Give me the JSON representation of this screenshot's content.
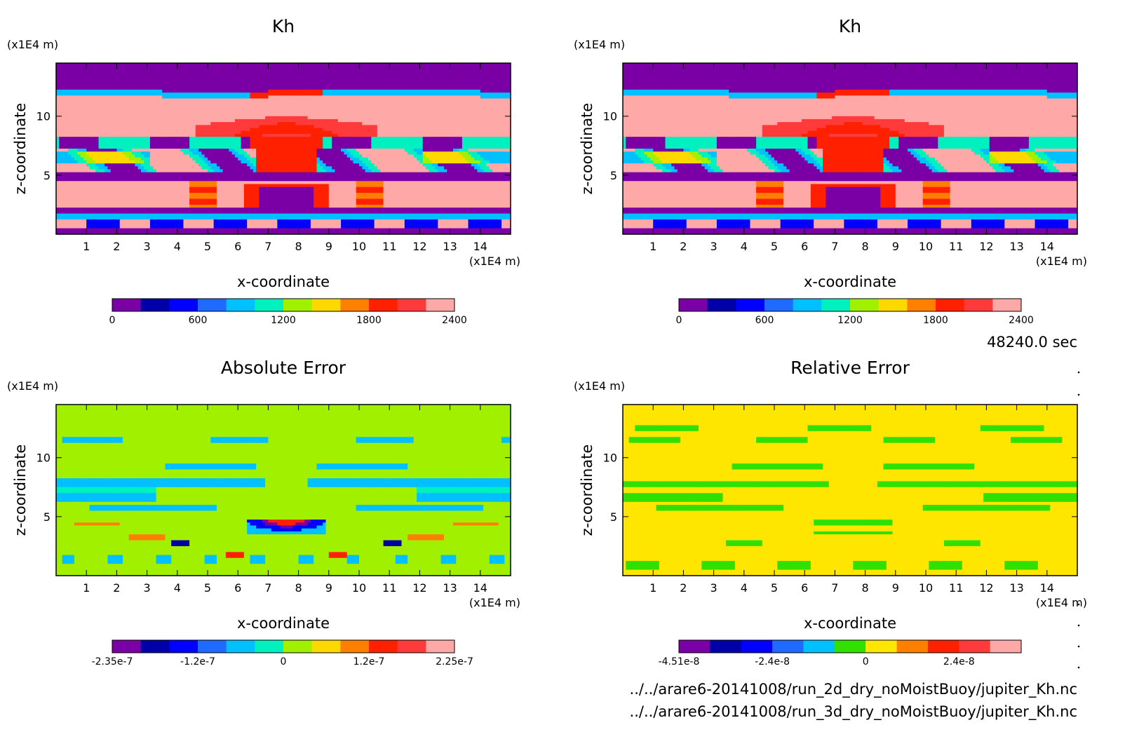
{
  "time_label": "48240.0 sec",
  "file_lines": [
    "../../arare6-20141008/run_2d_dry_noMoistBuoy/jupiter_Kh.nc",
    "../../arare6-20141008/run_3d_dry_noMoistBuoy/jupiter_Kh.nc"
  ],
  "chart_data": [
    {
      "type": "heatmap",
      "title": "Kh",
      "xlabel": "x-coordinate",
      "ylabel": "z-coordinate",
      "x_unit": "(x1E4 m)",
      "y_unit": "(x1E4 m)",
      "xlim": [
        0,
        15
      ],
      "ylim": [
        0,
        14.5
      ],
      "xticks": [
        "1",
        "2",
        "3",
        "4",
        "5",
        "6",
        "7",
        "8",
        "9",
        "10",
        "11",
        "12",
        "13",
        "14"
      ],
      "yticks": [
        "5",
        "10"
      ],
      "colorbar": {
        "colors": [
          "#7a00a6",
          "#0000a8",
          "#0000ff",
          "#1f6bff",
          "#00c0ff",
          "#00f0c0",
          "#a0f000",
          "#ffd800",
          "#ff8000",
          "#ff2000",
          "#ff3a3a",
          "#ffa8a8"
        ],
        "tick_labels": [
          "0",
          "600",
          "1200",
          "1800",
          "2400"
        ]
      },
      "field": "kh"
    },
    {
      "type": "heatmap",
      "title": "Kh",
      "xlabel": "x-coordinate",
      "ylabel": "z-coordinate",
      "x_unit": "(x1E4 m)",
      "y_unit": "(x1E4 m)",
      "xlim": [
        0,
        15
      ],
      "ylim": [
        0,
        14.5
      ],
      "xticks": [
        "1",
        "2",
        "3",
        "4",
        "5",
        "6",
        "7",
        "8",
        "9",
        "10",
        "11",
        "12",
        "13",
        "14"
      ],
      "yticks": [
        "5",
        "10"
      ],
      "colorbar": {
        "colors": [
          "#7a00a6",
          "#0000a8",
          "#0000ff",
          "#1f6bff",
          "#00c0ff",
          "#00f0c0",
          "#a0f000",
          "#ffd800",
          "#ff8000",
          "#ff2000",
          "#ff3a3a",
          "#ffa8a8"
        ],
        "tick_labels": [
          "0",
          "600",
          "1200",
          "1800",
          "2400"
        ]
      },
      "field": "kh"
    },
    {
      "type": "heatmap",
      "title": "Absolute Error",
      "xlabel": "x-coordinate",
      "ylabel": "z-coordinate",
      "x_unit": "(x1E4 m)",
      "y_unit": "(x1E4 m)",
      "xlim": [
        0,
        15
      ],
      "ylim": [
        0,
        14.5
      ],
      "xticks": [
        "1",
        "2",
        "3",
        "4",
        "5",
        "6",
        "7",
        "8",
        "9",
        "10",
        "11",
        "12",
        "13",
        "14"
      ],
      "yticks": [
        "5",
        "10"
      ],
      "colorbar": {
        "colors": [
          "#7a00a6",
          "#0000a8",
          "#0000ff",
          "#1f6bff",
          "#00c0ff",
          "#00f0c0",
          "#a0f000",
          "#ffd800",
          "#ff8000",
          "#ff2000",
          "#ff3a3a",
          "#ffa8a8"
        ],
        "tick_labels": [
          "-2.35e-7",
          "-1.2e-7",
          "0",
          "1.2e-7",
          "2.25e-7"
        ]
      },
      "field": "abs"
    },
    {
      "type": "heatmap",
      "title": "Relative Error",
      "xlabel": "x-coordinate",
      "ylabel": "z-coordinate",
      "x_unit": "(x1E4 m)",
      "y_unit": "(x1E4 m)",
      "xlim": [
        0,
        15
      ],
      "ylim": [
        0,
        14.5
      ],
      "xticks": [
        "1",
        "2",
        "3",
        "4",
        "5",
        "6",
        "7",
        "8",
        "9",
        "10",
        "11",
        "12",
        "13",
        "14"
      ],
      "yticks": [
        "5",
        "10"
      ],
      "colorbar": {
        "colors": [
          "#7a00a6",
          "#0000a8",
          "#0000ff",
          "#1f6bff",
          "#00c0ff",
          "#30e000",
          "#ffe600",
          "#ff8000",
          "#ff2000",
          "#ff3a3a",
          "#ffa8a8"
        ],
        "tick_labels": [
          "-4.51e-8",
          "-2.4e-8",
          "0",
          "2.4e-8"
        ]
      },
      "field": "rel"
    }
  ]
}
